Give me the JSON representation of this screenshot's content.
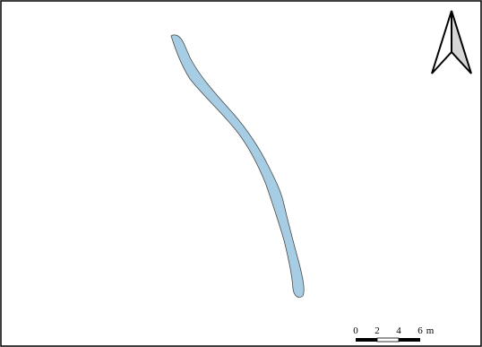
{
  "map": {
    "colors": {
      "water_fill": "#a6cde3",
      "water_outline": "#4a4a4a",
      "frame": "#000000",
      "background": "#ffffff"
    },
    "features": [
      {
        "type": "river-channel"
      }
    ],
    "north_arrow": {
      "icon": "north-arrow-icon"
    },
    "scale_bar": {
      "ticks": [
        "0",
        "2",
        "4",
        "6"
      ],
      "unit": "m"
    }
  }
}
